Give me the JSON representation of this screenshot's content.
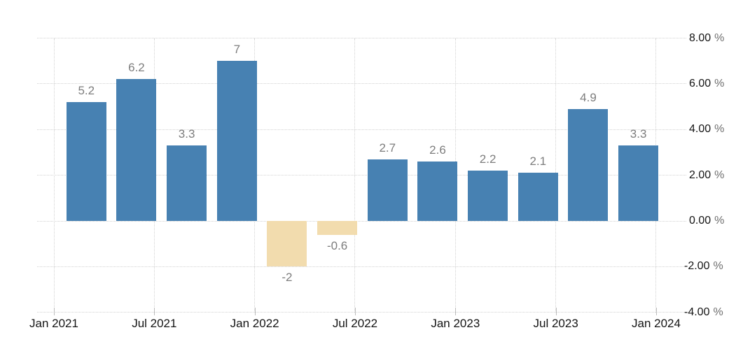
{
  "chart_data": {
    "type": "bar",
    "title": "",
    "categories": [
      "2021 Q1",
      "2021 Q2",
      "2021 Q3",
      "2021 Q4",
      "2022 Q1",
      "2022 Q2",
      "2022 Q3",
      "2022 Q4",
      "2023 Q1",
      "2023 Q2",
      "2023 Q3",
      "2023 Q4"
    ],
    "values": [
      5.2,
      6.2,
      3.3,
      7,
      -2,
      -0.6,
      2.7,
      2.6,
      2.2,
      2.1,
      4.9,
      3.3
    ],
    "bar_labels": [
      "5.2",
      "6.2",
      "3.3",
      "7",
      "-2",
      "-0.6",
      "2.7",
      "2.6",
      "2.2",
      "2.1",
      "4.9",
      "3.3"
    ],
    "x_tick_labels": [
      "Jan 2021",
      "Jul 2021",
      "Jan 2022",
      "Jul 2022",
      "Jan 2023",
      "Jul 2023",
      "Jan 2024"
    ],
    "y_tick_values": [
      8,
      6,
      4,
      2,
      0,
      -2,
      -4
    ],
    "y_tick_labels": [
      "8.00",
      "6.00",
      "4.00",
      "2.00",
      "0.00",
      "-2.00",
      "-4.00"
    ],
    "y_unit": "%",
    "ylim": [
      -4,
      8
    ],
    "xlabel": "",
    "ylabel": "",
    "legend": "none",
    "grid": "dotted",
    "y_axis_side": "right",
    "colors": {
      "bar_positive": "#4781b2",
      "bar_negative": "#f2dcae",
      "bar_label": "#7d7d7d",
      "axis_text": "#141414",
      "percent_sign": "#6e6e6e",
      "gridline": "#d2d2d2",
      "tick": "#bdbdbd"
    }
  }
}
